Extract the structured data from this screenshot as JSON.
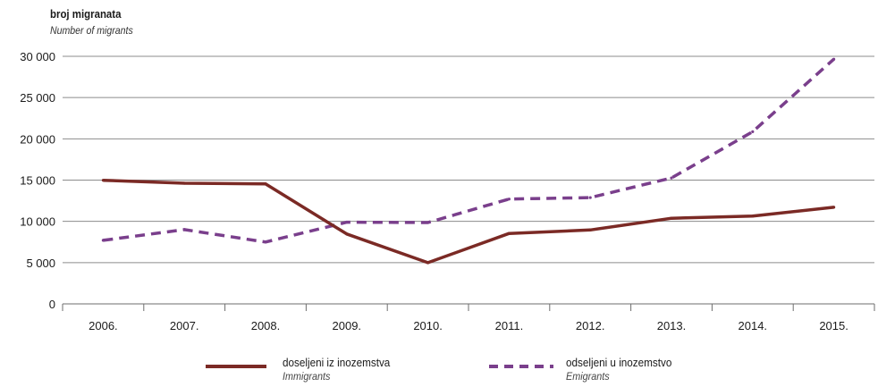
{
  "chart_data": {
    "type": "line",
    "ylabel": "broj migranata",
    "ylabel_sub": "Number of migrants",
    "categories": [
      "2006.",
      "2007.",
      "2008.",
      "2009.",
      "2010.",
      "2011.",
      "2012.",
      "2013.",
      "2014.",
      "2015."
    ],
    "y_ticks": [
      0,
      5000,
      10000,
      15000,
      20000,
      25000,
      30000
    ],
    "y_tick_labels": [
      "0",
      "5 000",
      "10 000",
      "15 000",
      "20 000",
      "25 000",
      "30 000"
    ],
    "ylim": [
      0,
      30000
    ],
    "grid": "horizontal",
    "legend_position": "bottom",
    "series": [
      {
        "name": "doseljeni iz inozemstva",
        "name_sub": "Immigrants",
        "style": "solid",
        "color": "#7b2a25",
        "values": [
          14980,
          14620,
          14540,
          8470,
          4990,
          8530,
          8960,
          10380,
          10640,
          11710
        ]
      },
      {
        "name": "odseljeni u inozemstvo",
        "name_sub": "Emigrants",
        "style": "dashed",
        "color": "#7a3f8c",
        "values": [
          7700,
          9000,
          7500,
          9900,
          9860,
          12700,
          12880,
          15260,
          20860,
          29650
        ]
      }
    ]
  }
}
